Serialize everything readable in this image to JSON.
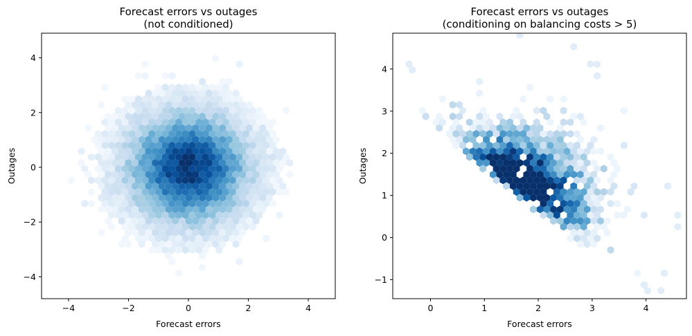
{
  "chart_data": [
    {
      "type": "hexbin",
      "title": "Forecast errors vs outages",
      "subtitle": "(not conditioned)",
      "xlabel": "Forecast errors",
      "ylabel": "Outages",
      "xlim": [
        -4.9,
        4.9
      ],
      "ylim": [
        -4.8,
        4.9
      ],
      "xticks": [
        -4,
        -2,
        0,
        2,
        4
      ],
      "yticks": [
        -4,
        -2,
        0,
        2,
        4
      ],
      "xtick_labels": [
        "−4",
        "−2",
        "0",
        "2",
        "4"
      ],
      "ytick_labels": [
        "−4",
        "−2",
        "0",
        "2",
        "4"
      ],
      "colormap": "Blues",
      "distribution": {
        "shape": "isotropic bivariate normal",
        "x_mean": 0,
        "y_mean": 0,
        "x_sd": 1,
        "y_sd": 1,
        "correlation": 0,
        "peak_density_at": [
          0,
          0
        ]
      },
      "grid": false,
      "legend": "none"
    },
    {
      "type": "hexbin",
      "title": "Forecast errors vs outages",
      "subtitle": "(conditioning on balancing costs > 5)",
      "xlabel": "Forecast errors",
      "ylabel": "Outages",
      "xlim": [
        -0.7,
        4.75
      ],
      "ylim": [
        -1.45,
        4.85
      ],
      "xticks": [
        0,
        1,
        2,
        3,
        4
      ],
      "yticks": [
        -1,
        0,
        1,
        2,
        3,
        4
      ],
      "xtick_labels": [
        "0",
        "1",
        "2",
        "3",
        "4"
      ],
      "ytick_labels": [
        "−1",
        "0",
        "1",
        "2",
        "3",
        "4"
      ],
      "colormap": "Blues",
      "distribution": {
        "shape": "diagonal band (conditioning on x + y > threshold)",
        "boundary": "x + y ≈ 3.1",
        "densest_region": [
          1.75,
          1.35
        ],
        "band_x_range": [
          0.3,
          3.4
        ],
        "band_y_range": [
          -0.5,
          3.3
        ]
      },
      "grid": false,
      "legend": "none"
    }
  ]
}
